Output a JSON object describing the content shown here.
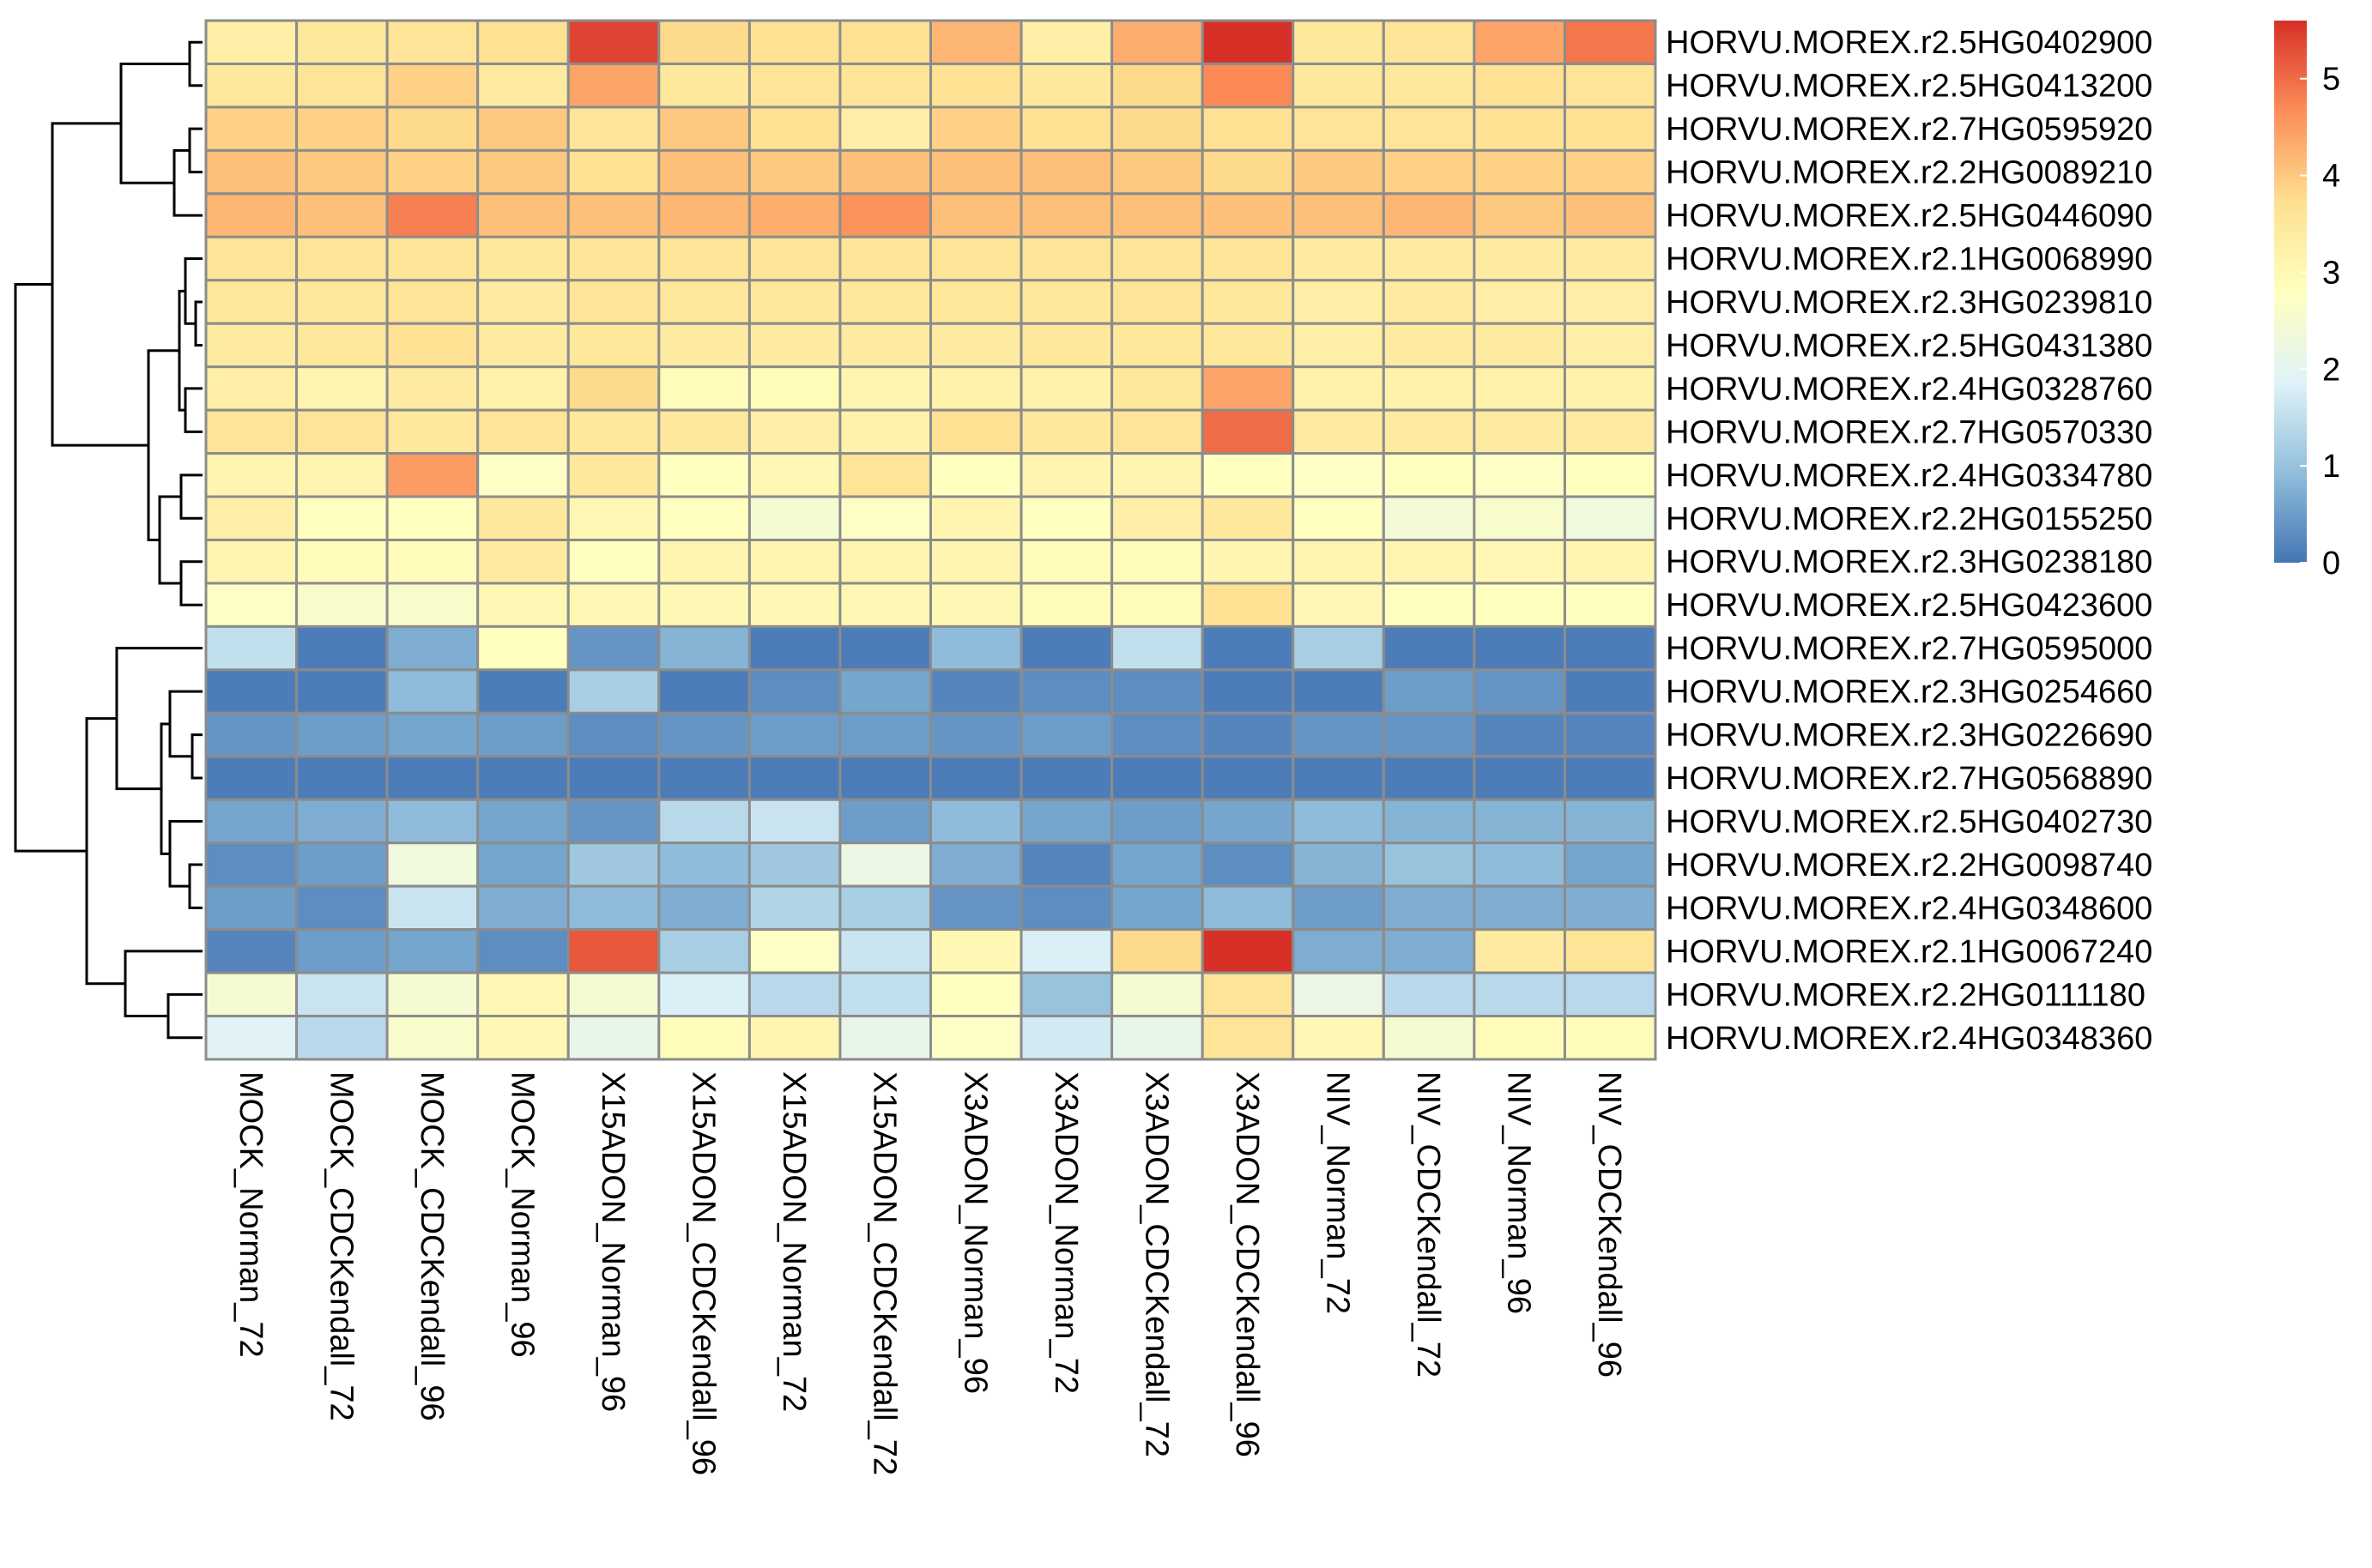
{
  "chart_data": {
    "type": "heatmap",
    "rows": [
      "HORVU.MOREX.r2.5HG0402900",
      "HORVU.MOREX.r2.5HG0413200",
      "HORVU.MOREX.r2.7HG0595920",
      "HORVU.MOREX.r2.2HG0089210",
      "HORVU.MOREX.r2.5HG0446090",
      "HORVU.MOREX.r2.1HG0068990",
      "HORVU.MOREX.r2.3HG0239810",
      "HORVU.MOREX.r2.5HG0431380",
      "HORVU.MOREX.r2.4HG0328760",
      "HORVU.MOREX.r2.7HG0570330",
      "HORVU.MOREX.r2.4HG0334780",
      "HORVU.MOREX.r2.2HG0155250",
      "HORVU.MOREX.r2.3HG0238180",
      "HORVU.MOREX.r2.5HG0423600",
      "HORVU.MOREX.r2.7HG0595000",
      "HORVU.MOREX.r2.3HG0254660",
      "HORVU.MOREX.r2.3HG0226690",
      "HORVU.MOREX.r2.7HG0568890",
      "HORVU.MOREX.r2.5HG0402730",
      "HORVU.MOREX.r2.2HG0098740",
      "HORVU.MOREX.r2.4HG0348600",
      "HORVU.MOREX.r2.1HG0067240",
      "HORVU.MOREX.r2.2HG0111180",
      "HORVU.MOREX.r2.4HG0348360"
    ],
    "columns": [
      "MOCK_Norman_72",
      "MOCK_CDCKendall_72",
      "MOCK_CDCKendall_96",
      "MOCK_Norman_96",
      "X15ADON_Norman_96",
      "X15ADON_CDCKendall_96",
      "X15ADON_Norman_72",
      "X15ADON_CDCKendall_72",
      "X3ADON_Norman_96",
      "X3ADON_Norman_72",
      "X3ADON_CDCKendall_72",
      "X3ADON_CDCKendall_96",
      "NIV_Norman_72",
      "NIV_CDCKendall_72",
      "NIV_Norman_96",
      "NIV_CDCKendall_96"
    ],
    "values": [
      [
        3.3,
        3.5,
        3.6,
        3.7,
        5.4,
        3.8,
        3.7,
        3.7,
        4.2,
        3.3,
        4.3,
        5.6,
        3.5,
        3.6,
        4.4,
        4.9
      ],
      [
        3.5,
        3.6,
        3.9,
        3.4,
        4.4,
        3.5,
        3.6,
        3.6,
        3.7,
        3.5,
        3.8,
        4.7,
        3.5,
        3.5,
        3.7,
        3.6
      ],
      [
        3.9,
        3.9,
        3.8,
        4.0,
        3.6,
        4.0,
        3.7,
        3.3,
        3.9,
        3.7,
        3.8,
        3.7,
        3.6,
        3.6,
        3.7,
        3.7
      ],
      [
        4.1,
        4.0,
        3.9,
        4.0,
        3.7,
        4.1,
        4.0,
        4.1,
        4.1,
        4.1,
        4.0,
        3.8,
        4.0,
        3.9,
        3.9,
        3.9
      ],
      [
        4.2,
        4.1,
        4.8,
        4.1,
        4.1,
        4.2,
        4.3,
        4.6,
        4.1,
        4.1,
        4.1,
        4.1,
        4.1,
        4.2,
        4.0,
        4.1
      ],
      [
        3.6,
        3.6,
        3.6,
        3.5,
        3.6,
        3.6,
        3.6,
        3.6,
        3.6,
        3.6,
        3.6,
        3.6,
        3.4,
        3.4,
        3.4,
        3.4
      ],
      [
        3.5,
        3.5,
        3.6,
        3.4,
        3.6,
        3.5,
        3.5,
        3.5,
        3.5,
        3.5,
        3.6,
        3.5,
        3.3,
        3.4,
        3.3,
        3.3
      ],
      [
        3.4,
        3.5,
        3.7,
        3.4,
        3.5,
        3.4,
        3.4,
        3.4,
        3.4,
        3.5,
        3.5,
        3.5,
        3.3,
        3.4,
        3.4,
        3.3
      ],
      [
        3.3,
        3.1,
        3.4,
        3.2,
        3.8,
        2.9,
        2.9,
        3.1,
        3.2,
        3.2,
        3.5,
        4.4,
        3.2,
        3.2,
        3.2,
        3.2
      ],
      [
        3.6,
        3.6,
        3.5,
        3.6,
        3.5,
        3.5,
        3.3,
        3.2,
        3.7,
        3.5,
        3.6,
        5.0,
        3.4,
        3.4,
        3.4,
        3.4
      ],
      [
        3.1,
        3.1,
        4.5,
        2.7,
        3.5,
        2.8,
        3.0,
        3.6,
        2.8,
        3.1,
        3.1,
        2.8,
        2.7,
        2.8,
        2.7,
        2.8
      ],
      [
        3.3,
        2.8,
        2.8,
        3.5,
        3.0,
        2.8,
        2.5,
        2.7,
        3.1,
        2.8,
        3.3,
        3.5,
        2.8,
        2.4,
        2.6,
        2.3
      ],
      [
        3.1,
        2.9,
        2.9,
        3.4,
        2.8,
        3.1,
        3.1,
        3.1,
        3.1,
        2.9,
        2.9,
        3.1,
        3.1,
        3.1,
        3.0,
        3.1
      ],
      [
        2.7,
        2.6,
        2.6,
        3.0,
        3.0,
        3.0,
        3.0,
        3.0,
        3.0,
        2.9,
        2.9,
        3.7,
        3.0,
        2.8,
        2.8,
        2.8
      ],
      [
        1.5,
        0.1,
        0.7,
        2.8,
        0.4,
        0.8,
        0.1,
        0.1,
        0.9,
        0.1,
        1.5,
        0.1,
        1.2,
        0.1,
        0.1,
        0.1
      ],
      [
        0.1,
        0.1,
        0.9,
        0.1,
        1.2,
        0.1,
        0.3,
        0.6,
        0.2,
        0.3,
        0.3,
        0.1,
        0.1,
        0.5,
        0.4,
        0.1
      ],
      [
        0.4,
        0.5,
        0.6,
        0.5,
        0.3,
        0.4,
        0.5,
        0.5,
        0.4,
        0.5,
        0.3,
        0.2,
        0.4,
        0.4,
        0.2,
        0.2
      ],
      [
        0.1,
        0.1,
        0.1,
        0.1,
        0.1,
        0.1,
        0.1,
        0.1,
        0.1,
        0.1,
        0.1,
        0.1,
        0.1,
        0.1,
        0.1,
        0.1
      ],
      [
        0.6,
        0.7,
        0.9,
        0.6,
        0.4,
        1.4,
        1.6,
        0.5,
        0.9,
        0.6,
        0.5,
        0.6,
        0.9,
        0.8,
        0.8,
        0.8
      ],
      [
        0.3,
        0.5,
        2.3,
        0.6,
        1.1,
        0.9,
        1.1,
        2.2,
        0.7,
        0.2,
        0.6,
        0.3,
        0.8,
        1.0,
        0.9,
        0.6
      ],
      [
        0.5,
        0.3,
        1.6,
        0.7,
        0.9,
        0.7,
        1.3,
        1.2,
        0.4,
        0.3,
        0.6,
        0.9,
        0.5,
        0.7,
        0.7,
        0.7
      ],
      [
        0.2,
        0.5,
        0.6,
        0.3,
        5.2,
        1.2,
        2.7,
        1.6,
        3.0,
        1.8,
        3.8,
        5.6,
        0.7,
        0.7,
        3.4,
        3.6
      ],
      [
        2.5,
        1.6,
        2.5,
        3.0,
        2.5,
        1.8,
        1.4,
        1.5,
        2.8,
        1.0,
        2.5,
        3.6,
        2.2,
        1.4,
        1.4,
        1.4
      ],
      [
        1.9,
        1.4,
        2.6,
        3.0,
        2.1,
        2.9,
        3.1,
        2.1,
        2.7,
        1.7,
        2.1,
        3.6,
        3.0,
        2.5,
        2.9,
        2.9
      ]
    ],
    "legend": {
      "ticks": [
        0,
        1,
        2,
        3,
        4,
        5
      ],
      "range": [
        0,
        5.6
      ],
      "colors": [
        "#4575b4",
        "#91bfdb",
        "#e0f3f8",
        "#ffffbf",
        "#fee090",
        "#fc8d59",
        "#d73027"
      ]
    }
  }
}
